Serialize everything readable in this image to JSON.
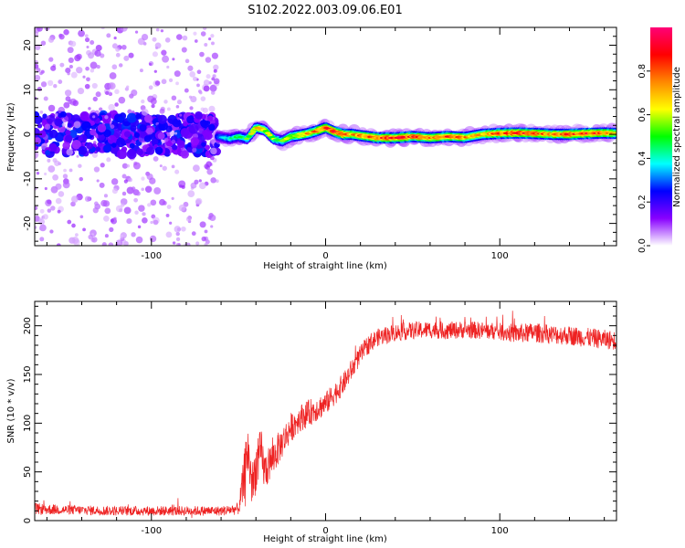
{
  "title": "S102.2022.003.09.06.E01",
  "chart_data": [
    {
      "type": "heatmap",
      "xlabel": "Height of straight line (km)",
      "ylabel": "Frequency (Hz)",
      "xlim": [
        -167,
        167
      ],
      "ylim": [
        -25,
        24
      ],
      "x_ticks": [
        "-100",
        "0",
        "100"
      ],
      "x_tick_values": [
        -100,
        0,
        100
      ],
      "y_ticks": [
        "-20",
        "-10",
        "0",
        "10",
        "20"
      ],
      "y_tick_values": [
        -20,
        -10,
        0,
        10,
        20
      ],
      "colorbar": {
        "label": "Normalized spectral amplitude",
        "range": [
          0,
          1
        ],
        "ticks": [
          "0.0",
          "0.2",
          "0.4",
          "0.6",
          "0.8"
        ],
        "tick_values": [
          0.0,
          0.2,
          0.4,
          0.6,
          0.8
        ],
        "colors": [
          "#ffffff",
          "#8800ff",
          "#0000ff",
          "#00ffff",
          "#00ff00",
          "#ffff00",
          "#ff8800",
          "#ff0000",
          "#ff0077"
        ]
      },
      "noise_region_x": [
        -167,
        -62
      ],
      "signal_track": {
        "x": [
          -62,
          -55,
          -50,
          -45,
          -40,
          -35,
          -30,
          -25,
          -20,
          -15,
          -10,
          -5,
          0,
          5,
          10,
          15,
          20,
          30,
          40,
          50,
          60,
          70,
          80,
          90,
          100,
          110,
          120,
          130,
          140,
          150,
          160,
          167
        ],
        "y": [
          -0.5,
          -1.0,
          -0.5,
          -1.0,
          1.5,
          1.0,
          -1.0,
          -1.5,
          -0.5,
          -0.2,
          0.2,
          0.8,
          1.5,
          0.6,
          0.0,
          0.0,
          -0.3,
          -0.8,
          -0.8,
          -0.5,
          -0.8,
          -0.5,
          -0.7,
          0.0,
          0.2,
          0.3,
          0.2,
          0.0,
          0.0,
          0.2,
          0.3,
          0.2
        ],
        "amplitude": [
          0.3,
          0.4,
          0.45,
          0.5,
          0.7,
          0.6,
          0.55,
          0.5,
          0.6,
          0.65,
          0.7,
          0.75,
          0.8,
          0.85,
          0.85,
          0.7,
          0.75,
          0.8,
          0.85,
          0.8,
          0.75,
          0.8,
          0.75,
          0.7,
          0.8,
          0.85,
          0.8,
          0.75,
          0.8,
          0.85,
          0.75,
          0.7
        ]
      }
    },
    {
      "type": "line",
      "xlabel": "Height of straight line (km)",
      "ylabel": "SNR (10 * v/v)",
      "xlim": [
        -167,
        167
      ],
      "ylim": [
        0,
        225
      ],
      "x_ticks": [
        "-100",
        "0",
        "100"
      ],
      "x_tick_values": [
        -100,
        0,
        100
      ],
      "y_ticks": [
        "0",
        "50",
        "100",
        "150",
        "200"
      ],
      "y_tick_values": [
        0,
        50,
        100,
        150,
        200
      ],
      "line_color": "#ee2222",
      "series": [
        {
          "x": [
            -167,
            -150,
            -120,
            -90,
            -60,
            -50,
            -47,
            -45,
            -42,
            -40,
            -37,
            -35,
            -30,
            -25,
            -20,
            -15,
            -10,
            -5,
            0,
            5,
            10,
            15,
            20,
            25,
            30,
            40,
            50,
            60,
            70,
            80,
            90,
            100,
            110,
            120,
            130,
            140,
            150,
            160,
            167
          ],
          "values": [
            12,
            11,
            10,
            10,
            10,
            12,
            40,
            75,
            35,
            55,
            70,
            50,
            65,
            80,
            95,
            105,
            110,
            115,
            120,
            130,
            140,
            155,
            170,
            182,
            188,
            193,
            195,
            196,
            195,
            196,
            195,
            194,
            192,
            193,
            191,
            190,
            188,
            186,
            185
          ],
          "noise_amplitude": [
            6,
            5,
            5,
            5,
            5,
            6,
            25,
            30,
            25,
            25,
            25,
            20,
            18,
            16,
            15,
            14,
            14,
            13,
            12,
            12,
            11,
            11,
            10,
            10,
            9,
            9,
            9,
            9,
            9,
            9,
            9,
            9,
            10,
            10,
            10,
            10,
            10,
            10,
            10
          ]
        }
      ]
    }
  ]
}
